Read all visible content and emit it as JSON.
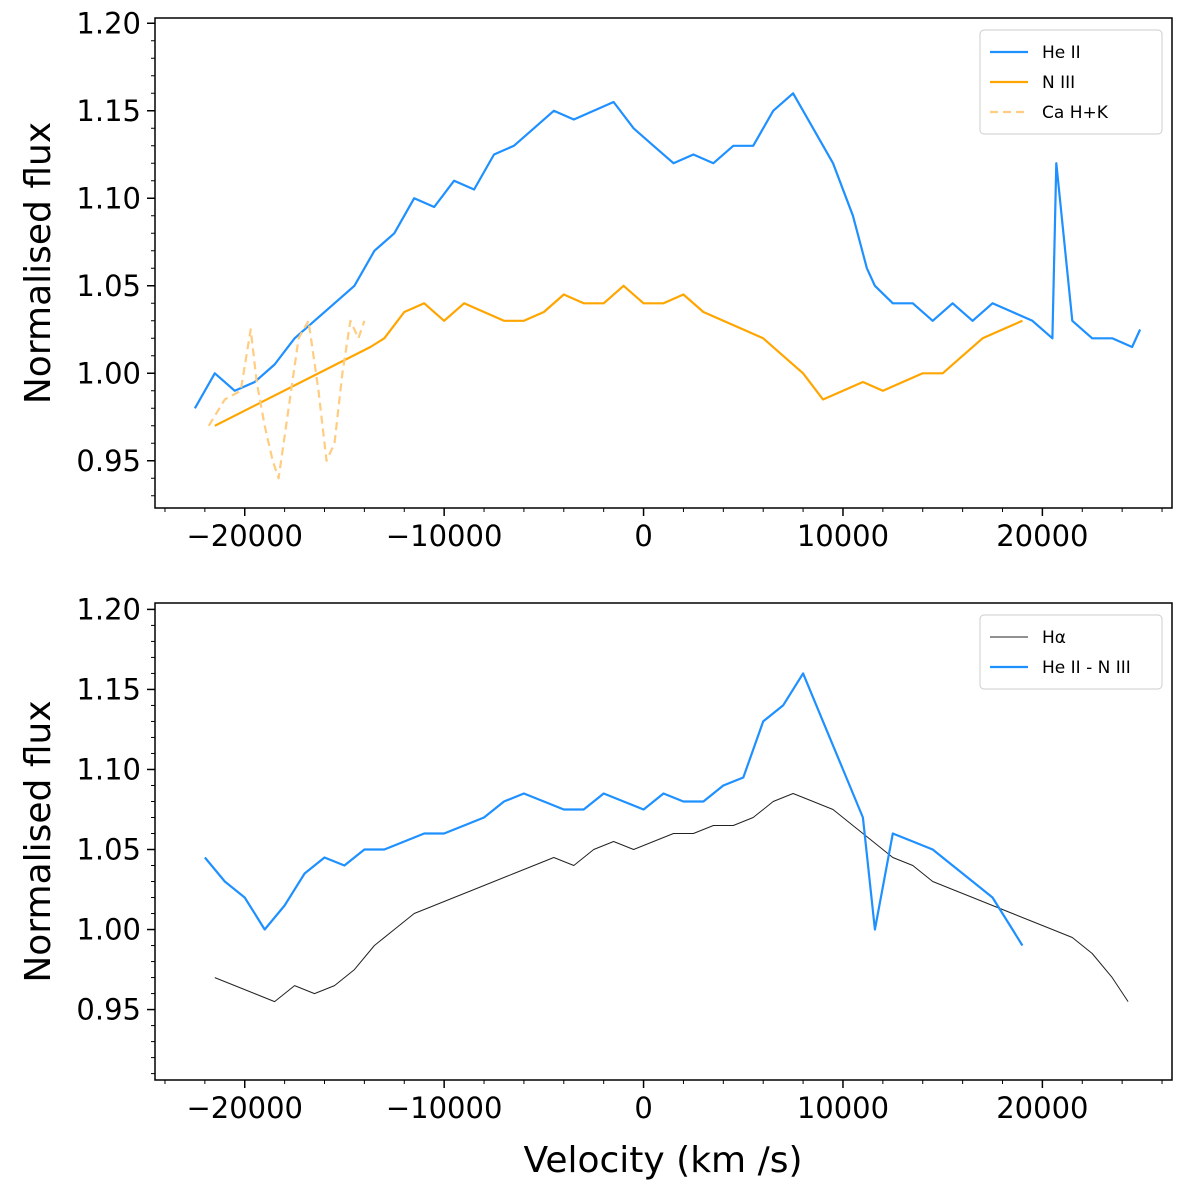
{
  "figure": {
    "xlabel": "Velocity (km /s)"
  },
  "chart_data": [
    {
      "type": "line",
      "panel": "top",
      "ylabel": "Normalised flux",
      "xlim": [
        -24500,
        26500
      ],
      "ylim": [
        0.923,
        1.203
      ],
      "xticks": [
        -20000,
        -10000,
        0,
        10000,
        20000
      ],
      "xtick_labels": [
        "−20000",
        "−10000",
        "0",
        "10000",
        "20000"
      ],
      "yticks": [
        0.95,
        1.0,
        1.05,
        1.1,
        1.15,
        1.2
      ],
      "ytick_labels": [
        "0.95",
        "1.00",
        "1.05",
        "1.10",
        "1.15",
        "1.20"
      ],
      "legend": {
        "position": "top-right",
        "entries": [
          "He II",
          "N III",
          "Ca H+K"
        ]
      },
      "series": [
        {
          "name": "He II",
          "color": "#1e90ff",
          "style": "solid",
          "width": 2.2,
          "x": [
            -22500,
            -21500,
            -20500,
            -19500,
            -18500,
            -17500,
            -16500,
            -15500,
            -14500,
            -13500,
            -12500,
            -11500,
            -10500,
            -9500,
            -8500,
            -7500,
            -6500,
            -5500,
            -4500,
            -3500,
            -2500,
            -1500,
            -500,
            500,
            1500,
            2500,
            3500,
            4500,
            5500,
            6500,
            7500,
            8500,
            9500,
            10500,
            11200,
            11600,
            12500,
            13500,
            14500,
            15500,
            16500,
            17500,
            18500,
            19500,
            20500,
            20700,
            21500,
            22500,
            23500,
            24500,
            24900
          ],
          "y": [
            0.98,
            1.0,
            0.99,
            0.995,
            1.005,
            1.02,
            1.03,
            1.04,
            1.05,
            1.07,
            1.08,
            1.1,
            1.095,
            1.11,
            1.105,
            1.125,
            1.13,
            1.14,
            1.15,
            1.145,
            1.15,
            1.155,
            1.14,
            1.13,
            1.12,
            1.125,
            1.12,
            1.13,
            1.13,
            1.15,
            1.16,
            1.14,
            1.12,
            1.09,
            1.06,
            1.05,
            1.04,
            1.04,
            1.03,
            1.04,
            1.03,
            1.04,
            1.035,
            1.03,
            1.02,
            1.12,
            1.03,
            1.02,
            1.02,
            1.015,
            1.025
          ]
        },
        {
          "name": "N III",
          "color": "#ffa500",
          "style": "solid",
          "width": 2.2,
          "x": [
            -21500,
            -13700,
            -13000,
            -12000,
            -11000,
            -10000,
            -9000,
            -8000,
            -7000,
            -6000,
            -5000,
            -4000,
            -3000,
            -2000,
            -1000,
            0,
            1000,
            2000,
            3000,
            4000,
            5000,
            6000,
            7000,
            8000,
            9000,
            10000,
            11000,
            12000,
            13000,
            14000,
            15000,
            16000,
            17000,
            18000,
            19000
          ],
          "y": [
            0.97,
            1.015,
            1.02,
            1.035,
            1.04,
            1.03,
            1.04,
            1.035,
            1.03,
            1.03,
            1.035,
            1.045,
            1.04,
            1.04,
            1.05,
            1.04,
            1.04,
            1.045,
            1.035,
            1.03,
            1.025,
            1.02,
            1.01,
            1.0,
            0.985,
            0.99,
            0.995,
            0.99,
            0.995,
            1.0,
            1.0,
            1.01,
            1.02,
            1.025,
            1.03
          ]
        },
        {
          "name": "Ca H+K",
          "color": "#ffcc80",
          "style": "dashed",
          "width": 2.2,
          "x": [
            -21800,
            -21000,
            -20200,
            -19700,
            -19400,
            -19000,
            -18600,
            -18300,
            -17800,
            -17300,
            -16800,
            -16300,
            -15900,
            -15500,
            -15100,
            -14700,
            -14300,
            -14000
          ],
          "y": [
            0.97,
            0.985,
            0.99,
            1.025,
            0.995,
            0.97,
            0.95,
            0.94,
            0.98,
            1.02,
            1.03,
            0.99,
            0.95,
            0.96,
            1.0,
            1.03,
            1.02,
            1.03
          ]
        }
      ]
    },
    {
      "type": "line",
      "panel": "bottom",
      "ylabel": "Normalised flux",
      "xlim": [
        -24500,
        26500
      ],
      "ylim": [
        0.906,
        1.204
      ],
      "xticks": [
        -20000,
        -10000,
        0,
        10000,
        20000
      ],
      "xtick_labels": [
        "−20000",
        "−10000",
        "0",
        "10000",
        "20000"
      ],
      "yticks": [
        0.95,
        1.0,
        1.05,
        1.1,
        1.15,
        1.2
      ],
      "ytick_labels": [
        "0.95",
        "1.00",
        "1.05",
        "1.10",
        "1.15",
        "1.20"
      ],
      "legend": {
        "position": "top-right",
        "entries": [
          "Hα",
          "He II - N III"
        ]
      },
      "series": [
        {
          "name": "Hα",
          "color": "#222222",
          "style": "solid",
          "width": 1.0,
          "x": [
            -21500,
            -20500,
            -19500,
            -18500,
            -17500,
            -16500,
            -15500,
            -14500,
            -13500,
            -12500,
            -11500,
            -10500,
            -9500,
            -8500,
            -7500,
            -6500,
            -5500,
            -4500,
            -3500,
            -2500,
            -1500,
            -500,
            500,
            1500,
            2500,
            3500,
            4500,
            5500,
            6500,
            7500,
            8500,
            9500,
            10500,
            11500,
            12500,
            13500,
            14500,
            15500,
            16500,
            17500,
            18500,
            19500,
            20500,
            21500,
            22500,
            23500,
            24300
          ],
          "y": [
            0.97,
            0.965,
            0.96,
            0.955,
            0.965,
            0.96,
            0.965,
            0.975,
            0.99,
            1.0,
            1.01,
            1.015,
            1.02,
            1.025,
            1.03,
            1.035,
            1.04,
            1.045,
            1.04,
            1.05,
            1.055,
            1.05,
            1.055,
            1.06,
            1.06,
            1.065,
            1.065,
            1.07,
            1.08,
            1.085,
            1.08,
            1.075,
            1.065,
            1.055,
            1.045,
            1.04,
            1.03,
            1.025,
            1.02,
            1.015,
            1.01,
            1.005,
            1.0,
            0.995,
            0.985,
            0.97,
            0.955
          ]
        },
        {
          "name": "He II - N III",
          "color": "#1e90ff",
          "style": "solid",
          "width": 2.2,
          "x": [
            -22000,
            -21000,
            -20000,
            -19000,
            -18000,
            -17000,
            -16000,
            -15000,
            -14000,
            -13000,
            -12000,
            -11000,
            -10000,
            -9000,
            -8000,
            -7000,
            -6000,
            -5000,
            -4000,
            -3000,
            -2000,
            -1000,
            0,
            1000,
            2000,
            3000,
            4000,
            5000,
            6000,
            7000,
            8000,
            9000,
            10000,
            11000,
            11600,
            12500,
            13500,
            14500,
            15500,
            16500,
            17500,
            18500,
            19000
          ],
          "y": [
            1.045,
            1.03,
            1.02,
            1.0,
            1.015,
            1.035,
            1.045,
            1.04,
            1.05,
            1.05,
            1.055,
            1.06,
            1.06,
            1.065,
            1.07,
            1.08,
            1.085,
            1.08,
            1.075,
            1.075,
            1.085,
            1.08,
            1.075,
            1.085,
            1.08,
            1.08,
            1.09,
            1.095,
            1.13,
            1.14,
            1.16,
            1.13,
            1.1,
            1.07,
            1.0,
            1.06,
            1.055,
            1.05,
            1.04,
            1.03,
            1.02,
            1.0,
            0.99
          ]
        }
      ]
    }
  ]
}
